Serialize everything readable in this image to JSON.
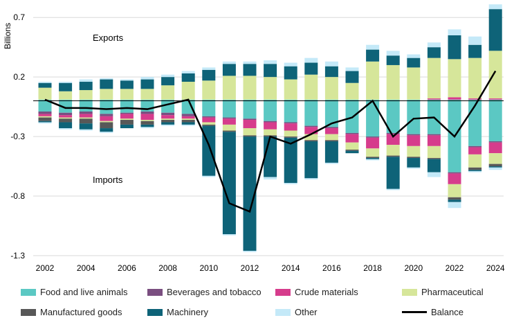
{
  "chart_data": {
    "type": "bar",
    "stacked": true,
    "ylabel": "Billions",
    "ylim": [
      -1.3,
      0.8
    ],
    "yticks": [
      0.7,
      0.2,
      -0.3,
      -0.8,
      -1.3
    ],
    "ytick_labels": [
      "0.7",
      "0.2",
      "-0.3",
      "-0.8",
      "-1.3"
    ],
    "categories": [
      "2002",
      "2003",
      "2004",
      "2005",
      "2006",
      "2007",
      "2008",
      "2009",
      "2010",
      "2011",
      "2012",
      "2013",
      "2014",
      "2015",
      "2016",
      "2017",
      "2018",
      "2019",
      "2020",
      "2021",
      "2022",
      "2023",
      "2024"
    ],
    "x_tick_labels": [
      "2002",
      "2004",
      "2006",
      "2008",
      "2010",
      "2012",
      "2014",
      "2016",
      "2018",
      "2020",
      "2022",
      "2024"
    ],
    "annotations": {
      "exports": "Exports",
      "imports": "Imports"
    },
    "export_series": [
      {
        "name": "Food and live animals",
        "color": "#5BC8C3",
        "values": [
          0.01,
          0.01,
          0.01,
          0.01,
          0.01,
          0.01,
          0.01,
          0.01,
          0.01,
          0.01,
          0.01,
          0.01,
          0.01,
          0.01,
          0.01,
          0.01,
          0.01,
          0.01,
          0.01,
          0.01,
          0.01,
          0.01,
          0.01
        ]
      },
      {
        "name": "Beverages and tobacco",
        "color": "#7A4E80",
        "values": [
          0,
          0,
          0,
          0,
          0,
          0,
          0,
          0,
          0,
          0,
          0,
          0,
          0,
          0,
          0,
          0,
          0,
          0,
          0,
          0,
          0,
          0,
          0
        ]
      },
      {
        "name": "Crude materials",
        "color": "#D63C8C",
        "values": [
          0,
          0,
          0,
          0,
          0,
          0,
          0,
          0,
          0,
          0,
          0,
          0,
          0,
          0,
          0,
          0,
          0,
          0,
          0,
          0.01,
          0.02,
          0.01,
          0.01
        ]
      },
      {
        "name": "Pharmaceutical",
        "color": "#D6E69A",
        "values": [
          0.1,
          0.07,
          0.08,
          0.09,
          0.09,
          0.09,
          0.12,
          0.15,
          0.16,
          0.2,
          0.2,
          0.19,
          0.17,
          0.21,
          0.19,
          0.14,
          0.32,
          0.29,
          0.27,
          0.34,
          0.32,
          0.34,
          0.4
        ]
      },
      {
        "name": "Manufactured goods",
        "color": "#585858",
        "values": [
          0,
          0,
          0,
          0,
          0,
          0,
          0,
          0,
          0,
          0,
          0,
          0,
          0,
          0,
          0,
          0,
          0,
          0,
          0,
          0,
          0,
          0,
          0
        ]
      },
      {
        "name": "Machinery",
        "color": "#0E6378",
        "values": [
          0.04,
          0.07,
          0.07,
          0.08,
          0.07,
          0.08,
          0.07,
          0.07,
          0.09,
          0.1,
          0.1,
          0.11,
          0.11,
          0.1,
          0.09,
          0.1,
          0.1,
          0.08,
          0.08,
          0.09,
          0.2,
          0.11,
          0.35
        ]
      },
      {
        "name": "Other",
        "color": "#C4E9F8",
        "values": [
          0.01,
          0.01,
          0.02,
          0.01,
          0.01,
          0.02,
          0.02,
          0.02,
          0.02,
          0.02,
          0.02,
          0.03,
          0.03,
          0.04,
          0.04,
          0.03,
          0.04,
          0.04,
          0.03,
          0.04,
          0.05,
          0.07,
          0.04
        ]
      }
    ],
    "import_series": [
      {
        "name": "Food and live animals",
        "color": "#5BC8C3",
        "values": [
          -0.09,
          -0.1,
          -0.09,
          -0.11,
          -0.1,
          -0.09,
          -0.1,
          -0.11,
          -0.13,
          -0.14,
          -0.15,
          -0.17,
          -0.18,
          -0.21,
          -0.22,
          -0.27,
          -0.3,
          -0.27,
          -0.28,
          -0.28,
          -0.6,
          -0.38,
          -0.34
        ]
      },
      {
        "name": "Beverages and tobacco",
        "color": "#7A4E80",
        "values": [
          -0.02,
          -0.02,
          -0.02,
          -0.02,
          -0.01,
          -0.02,
          -0.02,
          -0.02,
          -0.01,
          -0.01,
          -0.01,
          -0.01,
          -0.01,
          -0.01,
          -0.01,
          -0.01,
          -0.01,
          -0.01,
          -0.01,
          -0.01,
          -0.01,
          -0.01,
          -0.01
        ]
      },
      {
        "name": "Crude materials",
        "color": "#D63C8C",
        "values": [
          -0.02,
          -0.02,
          -0.03,
          -0.04,
          -0.04,
          -0.05,
          -0.03,
          -0.02,
          -0.04,
          -0.05,
          -0.07,
          -0.06,
          -0.06,
          -0.06,
          -0.05,
          -0.07,
          -0.09,
          -0.09,
          -0.09,
          -0.09,
          -0.09,
          -0.06,
          -0.09
        ]
      },
      {
        "name": "Pharmaceutical",
        "color": "#D6E69A",
        "values": [
          -0.01,
          -0.01,
          -0.01,
          -0.01,
          -0.01,
          -0.01,
          -0.01,
          -0.01,
          -0.02,
          -0.05,
          -0.06,
          -0.05,
          -0.05,
          -0.05,
          -0.05,
          -0.06,
          -0.07,
          -0.09,
          -0.09,
          -0.1,
          -0.11,
          -0.11,
          -0.09
        ]
      },
      {
        "name": "Manufactured goods",
        "color": "#585858",
        "values": [
          -0.03,
          -0.03,
          -0.04,
          -0.05,
          -0.04,
          -0.03,
          -0.02,
          -0.02,
          -0.01,
          -0.01,
          -0.01,
          -0.01,
          -0.01,
          -0.01,
          -0.01,
          -0.01,
          -0.01,
          -0.01,
          -0.01,
          -0.01,
          -0.02,
          -0.02,
          -0.02
        ]
      },
      {
        "name": "Machinery",
        "color": "#0E6378",
        "values": [
          -0.01,
          -0.05,
          -0.05,
          -0.03,
          -0.03,
          -0.02,
          -0.02,
          -0.02,
          -0.42,
          -0.86,
          -0.96,
          -0.34,
          -0.38,
          -0.31,
          -0.18,
          -0.02,
          -0.01,
          -0.27,
          -0.08,
          -0.11,
          -0.02,
          -0.01,
          -0.01
        ]
      },
      {
        "name": "Other",
        "color": "#C4E9F8",
        "values": [
          -0.01,
          -0.01,
          -0.01,
          -0.01,
          0,
          -0.01,
          -0.01,
          -0.01,
          -0.01,
          -0.01,
          -0.01,
          -0.02,
          -0.01,
          -0.01,
          -0.01,
          0,
          -0.01,
          -0.01,
          -0.01,
          -0.04,
          -0.05,
          -0.01,
          -0.02
        ]
      }
    ],
    "balance": {
      "name": "Balance",
      "color": "#000000",
      "values": [
        0.01,
        -0.06,
        -0.06,
        -0.07,
        -0.06,
        -0.07,
        -0.03,
        0.01,
        -0.37,
        -0.86,
        -0.93,
        -0.3,
        -0.36,
        -0.28,
        -0.19,
        -0.14,
        0,
        -0.3,
        -0.15,
        -0.14,
        -0.3,
        -0.04,
        0.25
      ]
    },
    "legend": [
      {
        "name": "Food and live animals",
        "color": "#5BC8C3",
        "kind": "box"
      },
      {
        "name": "Beverages and tobacco",
        "color": "#7A4E80",
        "kind": "box"
      },
      {
        "name": "Crude materials",
        "color": "#D63C8C",
        "kind": "box"
      },
      {
        "name": "Pharmaceutical",
        "color": "#D6E69A",
        "kind": "box"
      },
      {
        "name": "Manufactured goods",
        "color": "#585858",
        "kind": "box"
      },
      {
        "name": "Machinery",
        "color": "#0E6378",
        "kind": "box"
      },
      {
        "name": "Other",
        "color": "#C4E9F8",
        "kind": "box"
      },
      {
        "name": "Balance",
        "color": "#000000",
        "kind": "line"
      }
    ]
  }
}
